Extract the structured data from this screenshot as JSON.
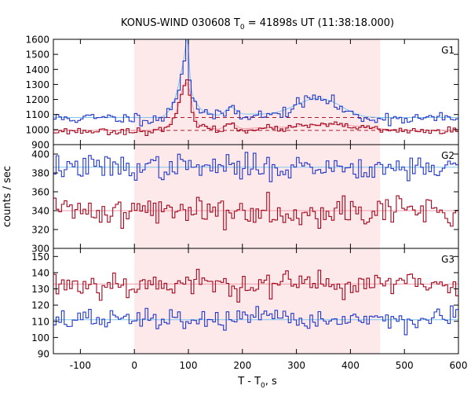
{
  "chart_data": {
    "type": "line",
    "title": {
      "main": "KONUS-WIND 030608 T",
      "sub": "0",
      "rest": " = 41898s UT (11:38:18.000)"
    },
    "xlabel": {
      "main": "T - T",
      "sub": "0",
      "rest": ", s"
    },
    "ylabel": "counts / sec",
    "xlim": [
      -150,
      600
    ],
    "x_ticks": [
      -100,
      0,
      100,
      200,
      300,
      400,
      500,
      600
    ],
    "shaded_interval": [
      0,
      455
    ],
    "colors": {
      "shade": "#fde8ea",
      "series_red": "#a3061c",
      "series_blue": "#2036c8",
      "fit_red": "#f29aa8",
      "fit_blue": "#7ec6ee",
      "dashed_red": "#b0142a",
      "frame": "#000000"
    },
    "panels": [
      {
        "label": "G1",
        "ylim": [
          900,
          1600
        ],
        "y_ticks": [
          900,
          1000,
          1100,
          1200,
          1300,
          1400,
          1500,
          1600
        ],
        "dashed_levels": [
          1080,
          995
        ],
        "series": [
          {
            "color_key": "series_blue",
            "fit_key": "fit_blue",
            "bin": 5,
            "baseline": 1075,
            "noise": 20,
            "seed": 11,
            "fit": 1080,
            "bumps": [
              [
                72,
                8,
                70
              ],
              [
                84,
                6,
                150
              ],
              [
                92,
                5,
                220
              ],
              [
                98,
                3,
                300
              ],
              [
                104,
                8,
                140
              ],
              [
                125,
                14,
                45
              ],
              [
                178,
                8,
                65
              ],
              [
                210,
                25,
                25
              ],
              [
                310,
                30,
                70
              ],
              [
                345,
                25,
                90
              ],
              [
                380,
                20,
                35
              ]
            ]
          },
          {
            "color_key": "series_red",
            "fit_key": "fit_red",
            "bin": 5,
            "baseline": 990,
            "noise": 11,
            "seed": 23,
            "fit": 995,
            "bumps": [
              [
                72,
                8,
                60
              ],
              [
                85,
                6,
                120
              ],
              [
                95,
                6,
                250
              ],
              [
                104,
                6,
                130
              ],
              [
                125,
                14,
                30
              ],
              [
                178,
                8,
                50
              ],
              [
                230,
                25,
                15
              ],
              [
                330,
                40,
                35
              ],
              [
                400,
                35,
                25
              ]
            ]
          }
        ]
      },
      {
        "label": "G2",
        "ylim": [
          300,
          410
        ],
        "y_ticks": [
          300,
          320,
          340,
          360,
          380,
          400
        ],
        "dashed_levels": [],
        "series": [
          {
            "color_key": "series_blue",
            "fit_key": "fit_blue",
            "bin": 5,
            "baseline": 386,
            "noise": 6.5,
            "seed": 37,
            "fit": 386,
            "bumps": []
          },
          {
            "color_key": "series_red",
            "fit_key": "fit_red",
            "bin": 5,
            "baseline": 340,
            "noise": 8,
            "seed": 41,
            "fit": 340,
            "bumps": []
          }
        ]
      },
      {
        "label": "G3",
        "ylim": [
          90,
          155
        ],
        "y_ticks": [
          90,
          100,
          110,
          120,
          130,
          140,
          150
        ],
        "dashed_levels": [],
        "series": [
          {
            "color_key": "series_red",
            "fit_key": "fit_red",
            "bin": 5,
            "baseline": 133,
            "noise": 4.2,
            "seed": 53,
            "fit": 133,
            "bumps": []
          },
          {
            "color_key": "series_blue",
            "fit_key": "fit_blue",
            "bin": 5,
            "baseline": 111,
            "noise": 3.2,
            "seed": 67,
            "fit": 111,
            "bumps": []
          }
        ]
      }
    ]
  }
}
